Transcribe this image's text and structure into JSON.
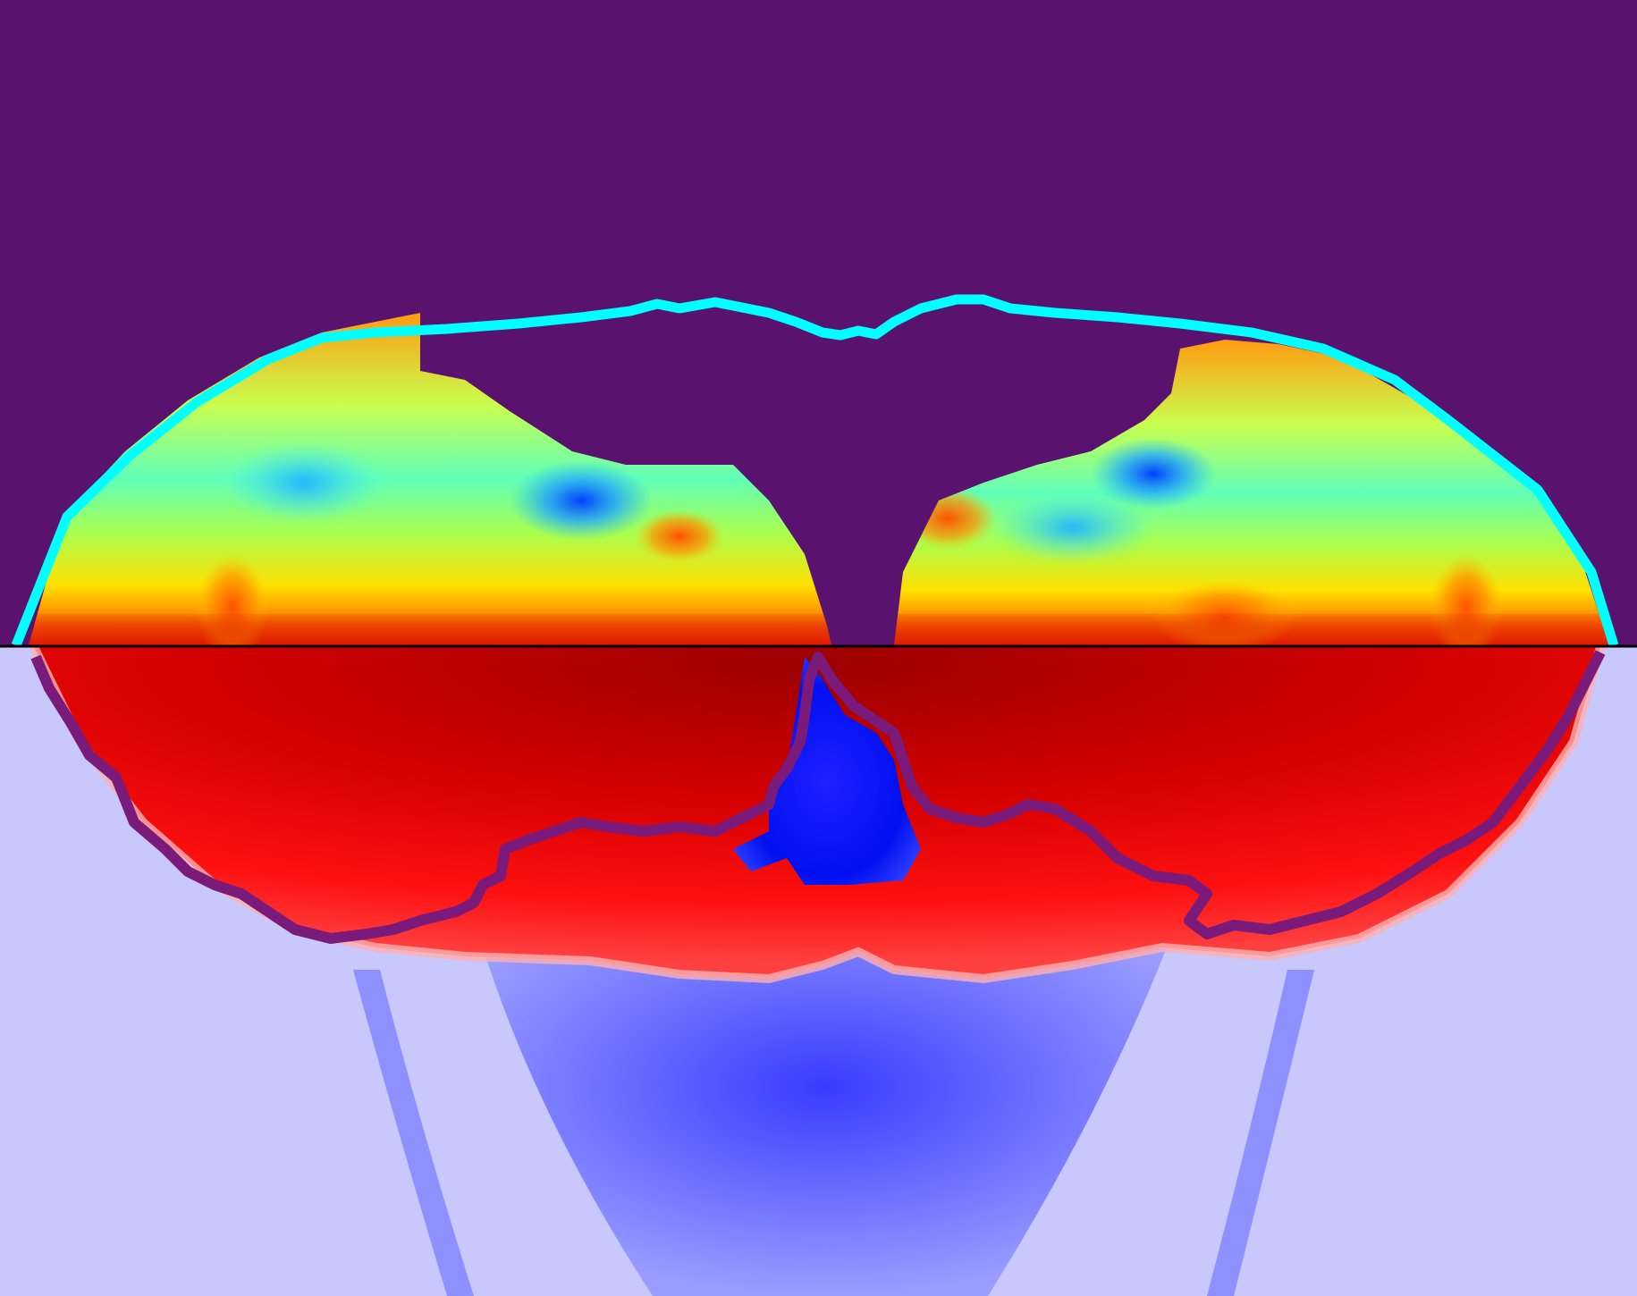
{
  "image": {
    "kind": "simulation snapshot",
    "upper_panel_background": "#5a126f",
    "lower_panel_background": "#c8c8fc",
    "divider_color": "#000000",
    "shock_contour_color": "#00ffff",
    "inner_contour_color": "#7a1a7a",
    "upper_colormap": [
      "#0040ff",
      "#00c0ff",
      "#40ffb0",
      "#b0ff40",
      "#ffff00",
      "#ff9a00",
      "#ff4000",
      "#c00000"
    ],
    "lower_colormap": [
      "#0010ff",
      "#6a70ff",
      "#c8c8fc",
      "#ff5050",
      "#e00000",
      "#a00000"
    ]
  }
}
